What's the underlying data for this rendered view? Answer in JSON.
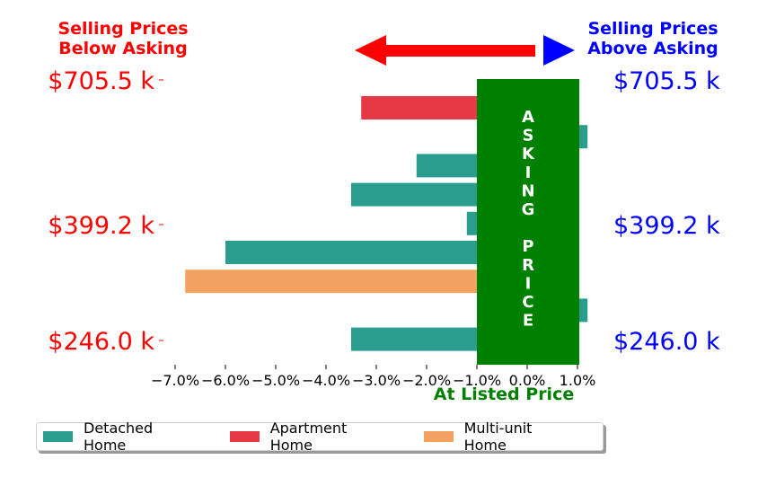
{
  "chart_data": {
    "type": "bar",
    "orientation": "horizontal",
    "x_ticks": [
      "−7.0%",
      "−6.0%",
      "−5.0%",
      "−4.0%",
      "−3.0%",
      "−2.0%",
      "−1.0%",
      "0.0%",
      "1.0%"
    ],
    "xlim": [
      -7.0,
      1.0
    ],
    "xlabel": "At Listed Price",
    "y_ticks_left": [
      "$705.5 k",
      "$399.2 k",
      "$246.0 k"
    ],
    "y_ticks_right": [
      "$705.5 k",
      "$399.2 k",
      "$246.0 k"
    ],
    "bars": [
      {
        "type": "Apartment Home",
        "value": -3.3
      },
      {
        "type": "Detached Home",
        "value": 1.2
      },
      {
        "type": "Detached Home",
        "value": -2.2
      },
      {
        "type": "Detached Home",
        "value": -3.5
      },
      {
        "type": "Detached Home",
        "value": -1.2
      },
      {
        "type": "Detached Home",
        "value": -6.0
      },
      {
        "type": "Multi-unit Home",
        "value": -6.8
      },
      {
        "type": "Detached Home",
        "value": 1.2
      },
      {
        "type": "Detached Home",
        "value": -3.5
      }
    ],
    "asking_band": {
      "label": "ASKING PRICE",
      "from": -1.0,
      "to": 1.0
    },
    "annotations": {
      "below": "Selling Prices\nBelow Asking",
      "above": "Selling Prices\nAbove Asking"
    },
    "legend": {
      "placement": "bottom-left",
      "entries": [
        {
          "name": "Detached Home",
          "color": "#2a9d8f"
        },
        {
          "name": "Apartment Home",
          "color": "#e63946"
        },
        {
          "name": "Multi-unit Home",
          "color": "#f4a261"
        }
      ]
    },
    "colors": {
      "below_text": "#ff0000",
      "above_text": "#0000ff",
      "asking_band": "#008000",
      "arrow": "#ff0000",
      "arrow_head_right": "#0000ff"
    }
  }
}
